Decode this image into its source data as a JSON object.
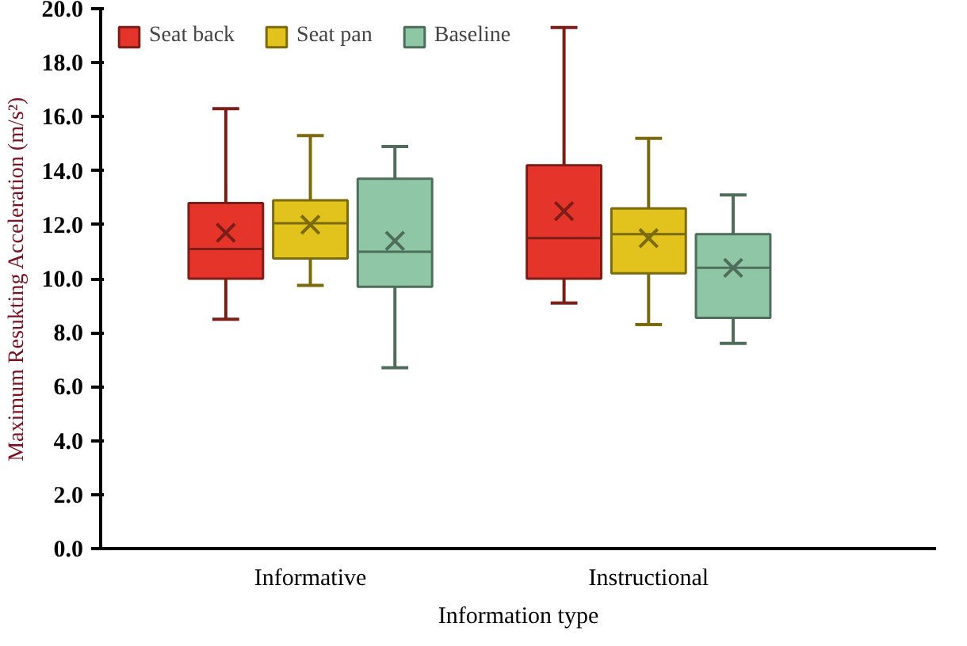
{
  "chart_data": {
    "type": "box",
    "xlabel": "Information type",
    "ylabel": "Maximum Resukting Acceleration (m/s²)",
    "categories": [
      "Informative",
      "Instructional"
    ],
    "ylim": [
      0,
      20
    ],
    "yticks": [
      {
        "value": 0,
        "label": "0.0"
      },
      {
        "value": 2,
        "label": "2.0"
      },
      {
        "value": 4,
        "label": "4.0"
      },
      {
        "value": 6,
        "label": "6.0"
      },
      {
        "value": 8,
        "label": "8.0"
      },
      {
        "value": 10,
        "label": "10.0"
      },
      {
        "value": 12,
        "label": "12.0"
      },
      {
        "value": 14,
        "label": "14.0"
      },
      {
        "value": 16,
        "label": "16.0"
      },
      {
        "value": 18,
        "label": "18.0"
      },
      {
        "value": 20,
        "label": "20.0"
      }
    ],
    "grid": false,
    "legend": "top",
    "marker": "cross",
    "series": [
      {
        "name": "Seat back",
        "color": "#e5352b",
        "boxes": [
          {
            "low": 8.5,
            "q1": 10.0,
            "median": 11.1,
            "q3": 12.8,
            "high": 16.3,
            "mean": 11.7
          },
          {
            "low": 9.1,
            "q1": 10.0,
            "median": 11.5,
            "q3": 14.2,
            "high": 19.3,
            "mean": 12.5
          }
        ]
      },
      {
        "name": "Seat pan",
        "color": "#e2c21c",
        "boxes": [
          {
            "low": 9.75,
            "q1": 10.75,
            "median": 12.05,
            "q3": 12.9,
            "high": 15.3,
            "mean": 12.0
          },
          {
            "low": 8.3,
            "q1": 10.2,
            "median": 11.65,
            "q3": 12.6,
            "high": 15.2,
            "mean": 11.5
          }
        ]
      },
      {
        "name": "Baseline",
        "color": "#8fc7a6",
        "boxes": [
          {
            "low": 6.7,
            "q1": 9.7,
            "median": 11.0,
            "q3": 13.7,
            "high": 14.9,
            "mean": 11.4
          },
          {
            "low": 7.6,
            "q1": 8.55,
            "median": 10.4,
            "q3": 11.65,
            "high": 13.1,
            "mean": 10.4
          }
        ]
      }
    ]
  }
}
